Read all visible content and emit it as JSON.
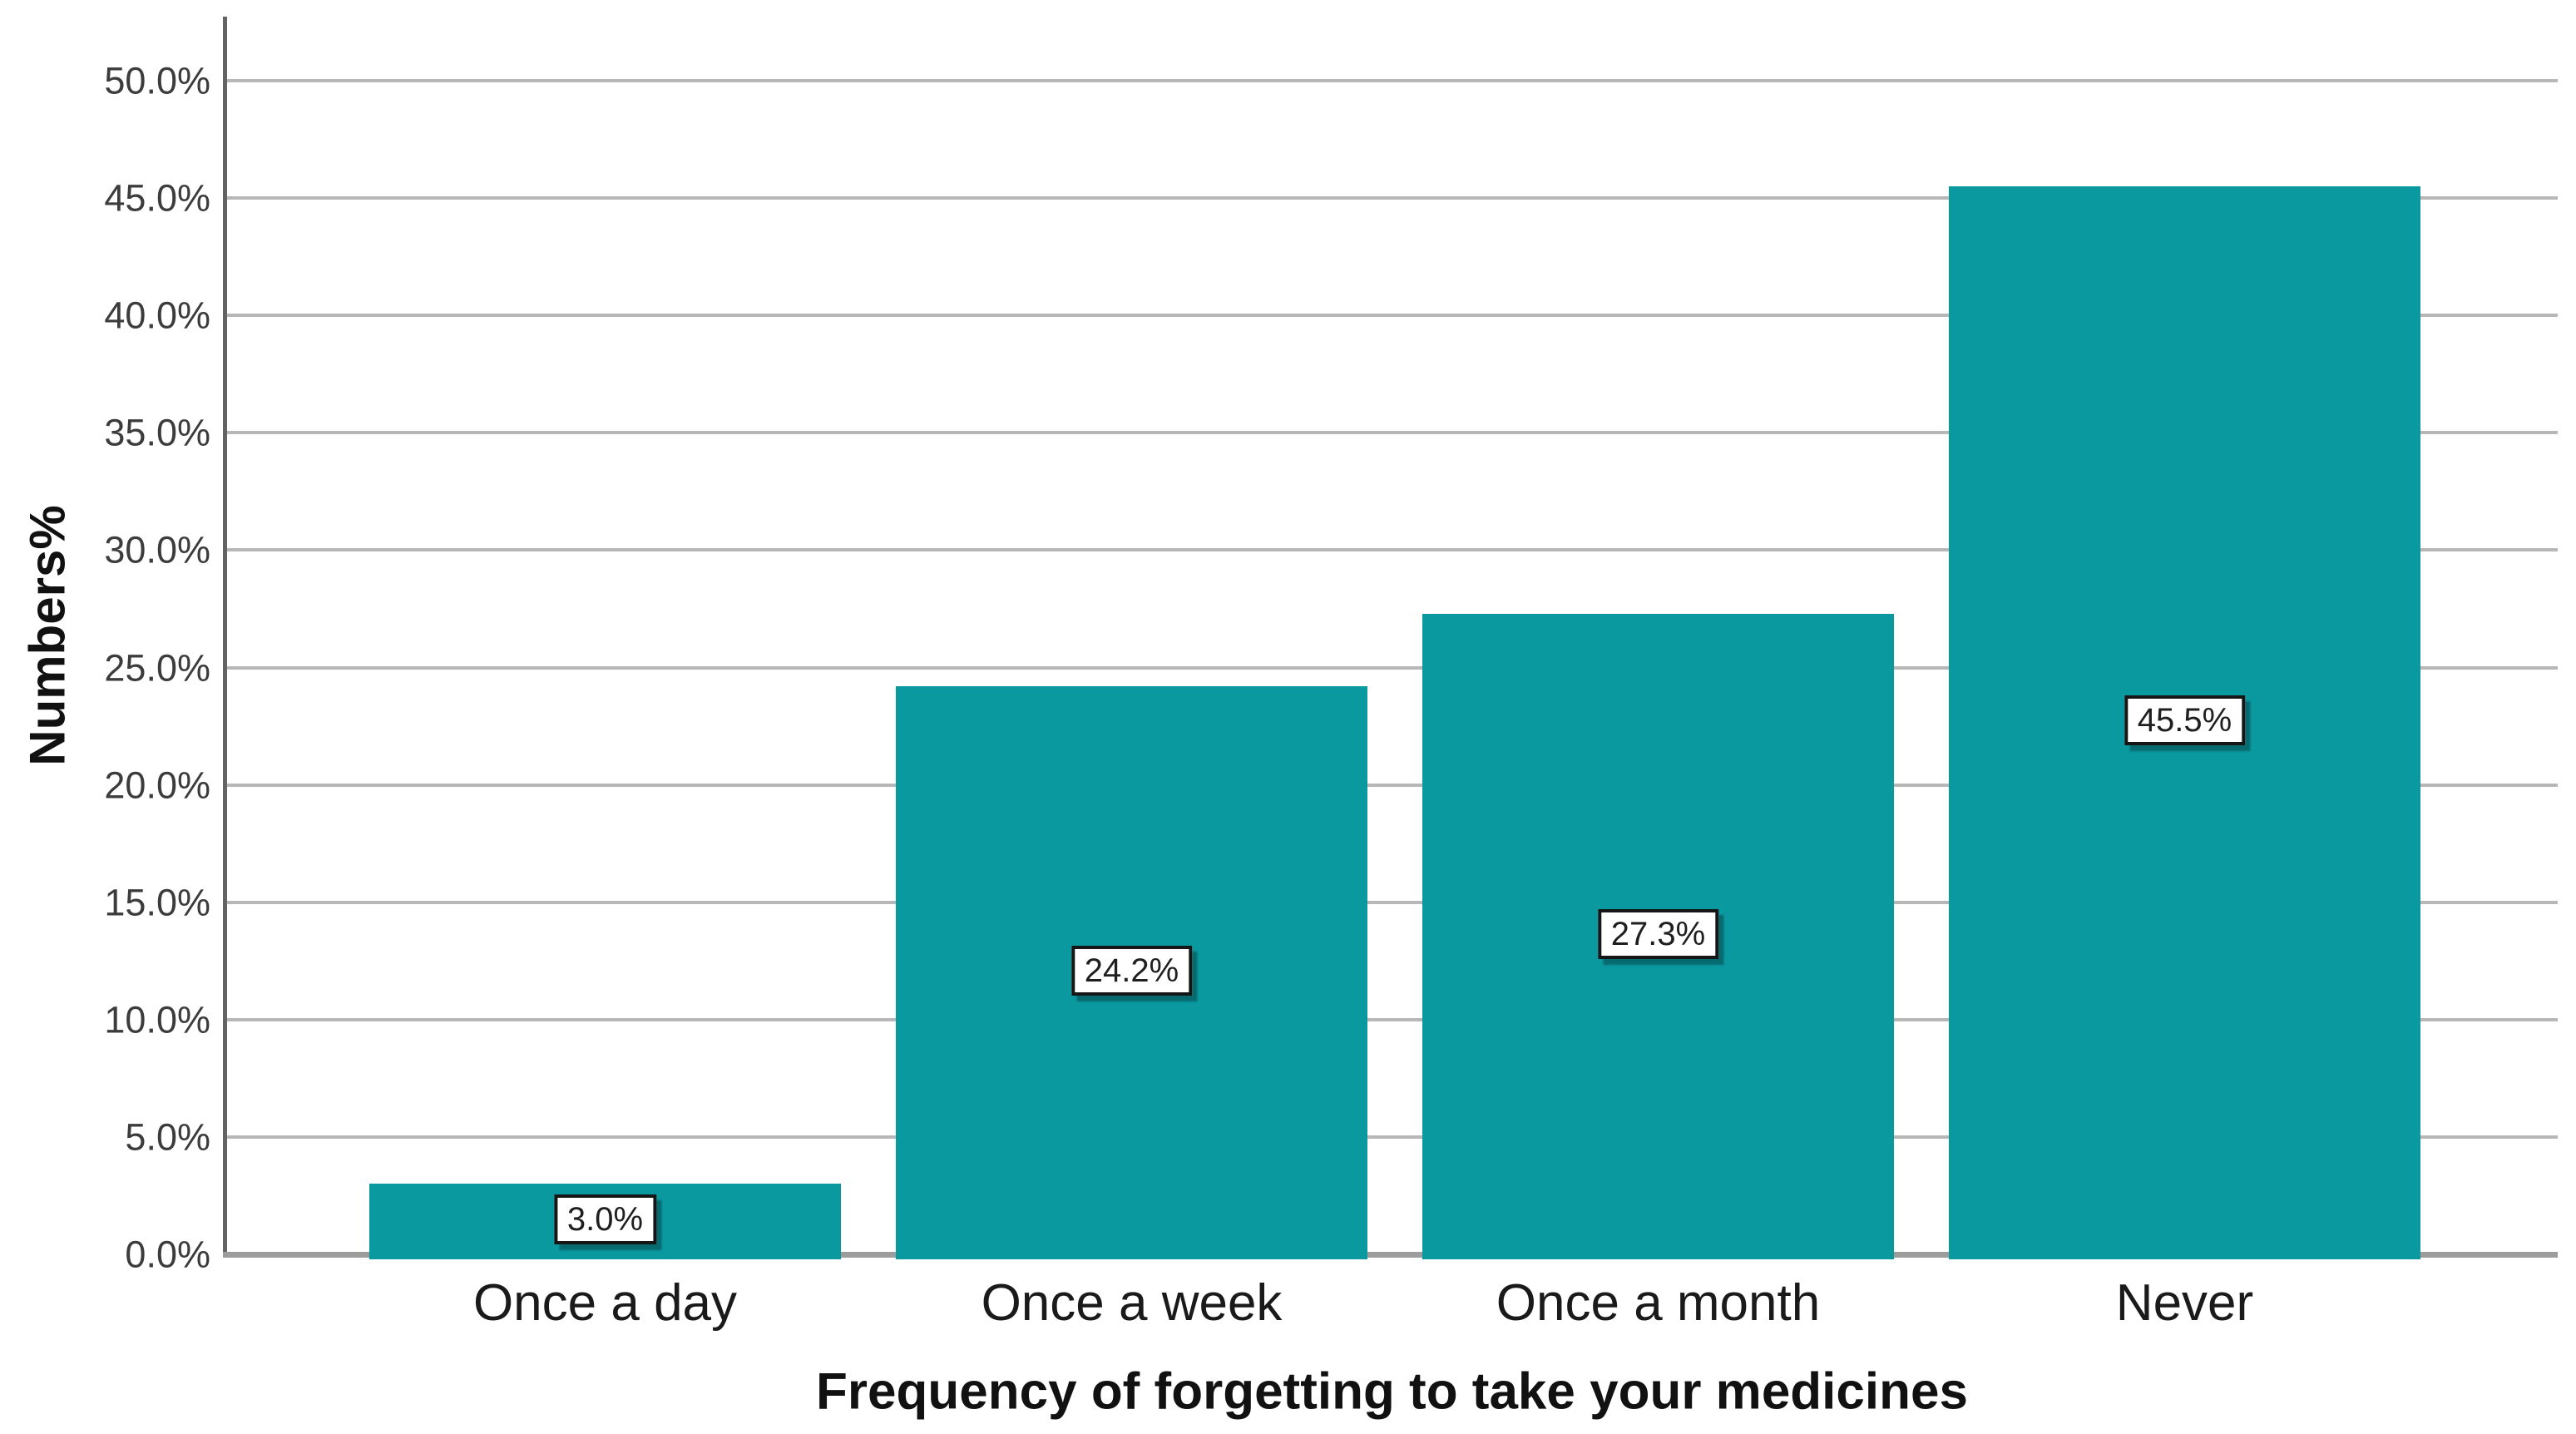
{
  "chart_data": {
    "type": "bar",
    "title": "",
    "xlabel": "Frequency of forgetting to take your medicines",
    "ylabel": "Numbers%",
    "categories": [
      "Once a day",
      "Once a week",
      "Once a month",
      "Never"
    ],
    "values": [
      3.0,
      24.2,
      27.3,
      45.5
    ],
    "value_labels": [
      "3.0%",
      "24.2%",
      "27.3%",
      "45.5%"
    ],
    "y_ticks": [
      "0.0%",
      "5.0%",
      "10.0%",
      "15.0%",
      "20.0%",
      "25.0%",
      "30.0%",
      "35.0%",
      "40.0%",
      "45.0%",
      "50.0%"
    ],
    "ylim": [
      0,
      50
    ],
    "grid": "horizontal",
    "legend": "none",
    "style": {
      "background": "#ffffff",
      "bar_color": "#0b99a0",
      "gridline_color": "#b7b7b7",
      "y_axis_color": "#636363",
      "x_axis_color": "#9c9c9c",
      "tick_label_color": "#3c3c3c",
      "category_label_color": "#1a1a1a",
      "axis_title_color": "#111111",
      "value_label_text_color": "#1f1f1f",
      "value_label_bg": "#ffffff",
      "value_label_border": "#161616"
    }
  }
}
